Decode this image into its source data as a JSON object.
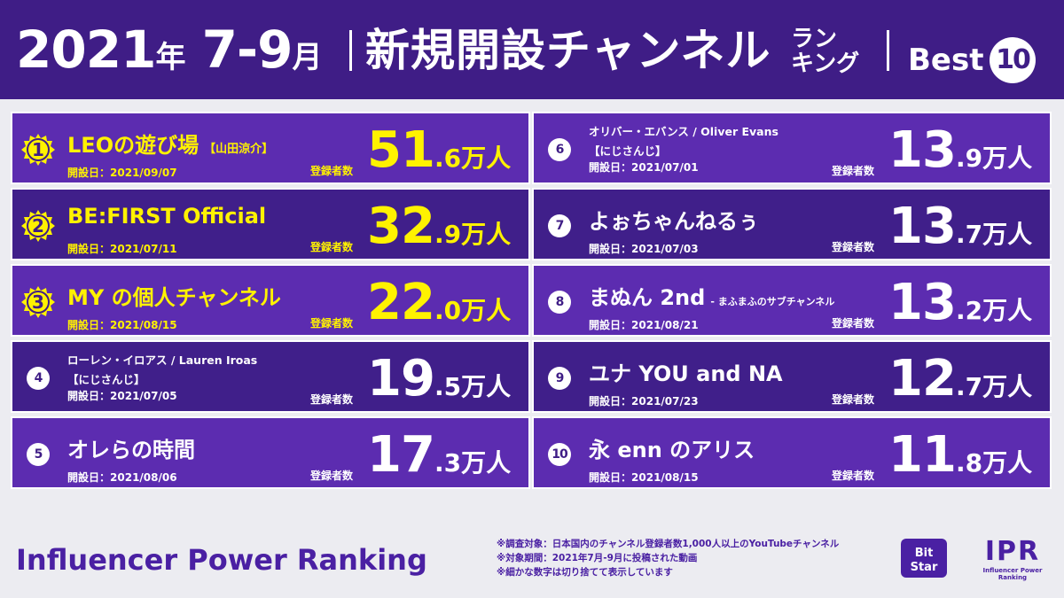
{
  "header": {
    "year": "2021",
    "year_suffix": "年",
    "period": "7-9",
    "period_suffix": "月",
    "title": "新規開設チャンネル",
    "stack_line1": "ラン",
    "stack_line2": "キング",
    "best_label": "Best",
    "best_number": "10"
  },
  "labels": {
    "opened_prefix": "開設日：",
    "subscribers": "登録者数",
    "unit": "万人"
  },
  "rankings": [
    {
      "rank": "1",
      "name": "LEOの遊び場",
      "tag": "【山田涼介】",
      "date": "2021/09/07",
      "int": "51",
      "dec": ".6"
    },
    {
      "rank": "2",
      "name": "BE:FIRST Official",
      "date": "2021/07/11",
      "int": "32",
      "dec": ".9"
    },
    {
      "rank": "3",
      "name": "MY の個人チャンネル",
      "date": "2021/08/15",
      "int": "22",
      "dec": ".0"
    },
    {
      "rank": "4",
      "name": "ローレン・イロアス / Lauren Iroas",
      "tagline": "【にじさんじ】",
      "date": "2021/07/05",
      "int": "19",
      "dec": ".5"
    },
    {
      "rank": "5",
      "name": "オレらの時間",
      "date": "2021/08/06",
      "int": "17",
      "dec": ".3"
    },
    {
      "rank": "6",
      "name": "オリバー・エバンス / Oliver Evans",
      "tagline": "【にじさんじ】",
      "date": "2021/07/01",
      "int": "13",
      "dec": ".9"
    },
    {
      "rank": "7",
      "name": "よぉちゃんねるぅ",
      "date": "2021/07/03",
      "int": "13",
      "dec": ".7"
    },
    {
      "rank": "8",
      "name": "まぬん 2nd",
      "sub": "- まふまふのサブチャンネル",
      "date": "2021/08/21",
      "int": "13",
      "dec": ".2"
    },
    {
      "rank": "9",
      "name": "ユナ YOU and NA",
      "date": "2021/07/23",
      "int": "12",
      "dec": ".7"
    },
    {
      "rank": "10",
      "name": "永 enn のアリス",
      "date": "2021/08/15",
      "int": "11",
      "dec": ".8"
    }
  ],
  "footer": {
    "title": "Influencer Power Ranking",
    "note1": "※調査対象：日本国内のチャンネル登録者数1,000人以上のYouTubeチャンネル",
    "note2": "※対象期間：2021年7月-9月に投稿された動画",
    "note3": "※細かな数字は切り捨てて表示しています",
    "bitstar_logo": "BitStar",
    "ipr_logo": "IPR",
    "ipr_sub": "Influencer Power Ranking"
  },
  "colors": {
    "header_bg": "#3f1d86",
    "card_light": "#5c2cb0",
    "card_dark": "#401f8a",
    "accent_yellow": "#fff200"
  }
}
